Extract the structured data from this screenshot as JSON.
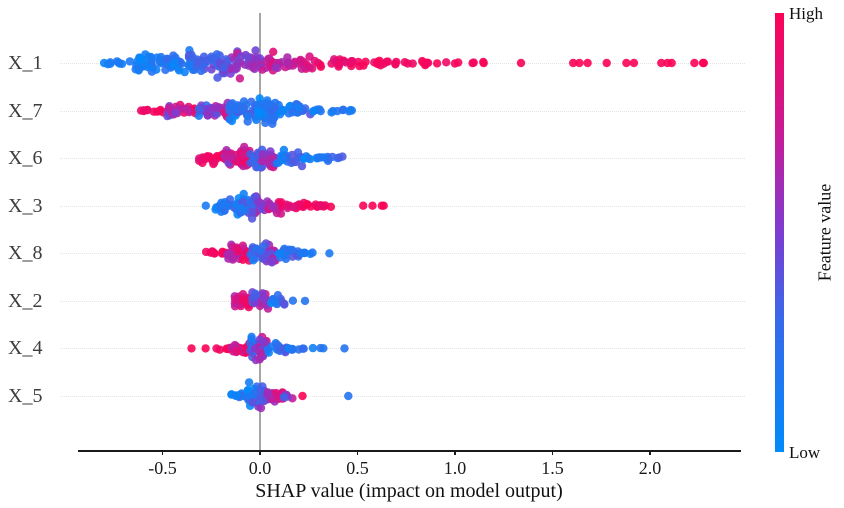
{
  "chart_data": {
    "type": "scatter",
    "variant": "shap-beeswarm-summary",
    "xlabel": "SHAP value (impact on model output)",
    "x_range": [
      -0.93,
      2.46
    ],
    "x_ticks": [
      {
        "value": -0.5,
        "label": "-0.5"
      },
      {
        "value": 0.0,
        "label": "0.0"
      },
      {
        "value": 0.5,
        "label": "0.5"
      },
      {
        "value": 1.0,
        "label": "1.0"
      },
      {
        "value": 1.5,
        "label": "1.5"
      },
      {
        "value": 2.0,
        "label": "2.0"
      }
    ],
    "grid": "dotted-row-guides",
    "zero_reference_line": 0.0,
    "colorbar": {
      "label": "Feature value",
      "high": "High",
      "low": "Low",
      "low_color": "#008bfb",
      "high_color": "#fb0357",
      "gradient_stops": [
        [
          0.0,
          "#008bfb"
        ],
        [
          0.3,
          "#3769eb"
        ],
        [
          0.5,
          "#7d3cd2"
        ],
        [
          0.72,
          "#c61c98"
        ],
        [
          1.0,
          "#fb0357"
        ]
      ]
    },
    "segment_format": [
      "shap_start",
      "shap_end",
      "n_points",
      "y_spread_px",
      "feature_value_start",
      "feature_value_end",
      "feature_value_noise"
    ],
    "features": [
      {
        "name": "X_1",
        "shap_range": [
          -0.81,
          2.3
        ],
        "segments": [
          [
            -0.81,
            -0.64,
            9,
            2.5,
            0.1,
            0.2,
            0.1
          ],
          [
            -0.64,
            -0.45,
            45,
            11.0,
            0.05,
            0.25,
            0.2
          ],
          [
            -0.45,
            -0.28,
            45,
            14.0,
            0.1,
            0.4,
            0.3
          ],
          [
            -0.28,
            -0.1,
            45,
            16.0,
            0.25,
            0.6,
            0.35
          ],
          [
            -0.1,
            0.08,
            35,
            13.0,
            0.45,
            0.75,
            0.3
          ],
          [
            0.08,
            0.32,
            30,
            9.0,
            0.65,
            0.92,
            0.2
          ],
          [
            0.32,
            0.62,
            26,
            4.0,
            0.85,
            1.0,
            0.1
          ],
          [
            0.62,
            0.95,
            16,
            2.5,
            0.92,
            1.0,
            0.06
          ],
          [
            0.95,
            1.18,
            7,
            1.5,
            0.95,
            1.0,
            0.05
          ],
          [
            1.3,
            1.34,
            1,
            0.0,
            1.0,
            1.0,
            0.0
          ],
          [
            1.6,
            1.78,
            4,
            0.0,
            1.0,
            1.0,
            0.0
          ],
          [
            1.85,
            1.92,
            2,
            0.0,
            1.0,
            1.0,
            0.0
          ],
          [
            2.02,
            2.12,
            3,
            0.0,
            1.0,
            1.0,
            0.0
          ],
          [
            2.18,
            2.3,
            3,
            0.0,
            1.0,
            1.0,
            0.0
          ]
        ]
      },
      {
        "name": "X_7",
        "shap_range": [
          -0.62,
          0.58
        ],
        "segments": [
          [
            -0.62,
            -0.48,
            10,
            2.5,
            0.92,
            1.0,
            0.08
          ],
          [
            -0.48,
            -0.32,
            28,
            7.0,
            0.55,
            0.95,
            0.35
          ],
          [
            -0.32,
            -0.16,
            38,
            9.0,
            0.3,
            0.75,
            0.4
          ],
          [
            -0.16,
            -0.02,
            40,
            11.0,
            0.1,
            0.4,
            0.3
          ],
          [
            -0.02,
            0.1,
            45,
            14.0,
            0.05,
            0.25,
            0.2
          ],
          [
            0.1,
            0.26,
            22,
            7.0,
            0.05,
            0.3,
            0.2
          ],
          [
            0.26,
            0.45,
            10,
            2.5,
            0.1,
            0.25,
            0.15
          ],
          [
            0.45,
            0.58,
            3,
            1.0,
            0.15,
            0.2,
            0.1
          ]
        ]
      },
      {
        "name": "X_6",
        "shap_range": [
          -0.32,
          0.43
        ],
        "segments": [
          [
            -0.32,
            -0.18,
            22,
            7.0,
            0.9,
            1.0,
            0.1
          ],
          [
            -0.18,
            -0.05,
            45,
            13.0,
            0.55,
            0.95,
            0.35
          ],
          [
            -0.05,
            0.08,
            40,
            13.0,
            0.3,
            0.7,
            0.35
          ],
          [
            0.08,
            0.22,
            26,
            9.0,
            0.1,
            0.45,
            0.3
          ],
          [
            0.22,
            0.43,
            16,
            4.0,
            0.05,
            0.3,
            0.2
          ]
        ]
      },
      {
        "name": "X_3",
        "shap_range": [
          -0.28,
          0.65
        ],
        "segments": [
          [
            -0.28,
            -0.26,
            1,
            0.0,
            0.15,
            0.15,
            0.0
          ],
          [
            -0.24,
            -0.12,
            22,
            8.0,
            0.05,
            0.3,
            0.2
          ],
          [
            -0.12,
            0.0,
            48,
            14.0,
            0.1,
            0.55,
            0.35
          ],
          [
            0.0,
            0.12,
            28,
            8.0,
            0.5,
            0.9,
            0.3
          ],
          [
            0.12,
            0.26,
            18,
            4.0,
            0.8,
            1.0,
            0.15
          ],
          [
            0.26,
            0.4,
            10,
            2.0,
            0.9,
            1.0,
            0.08
          ],
          [
            0.52,
            0.58,
            2,
            0.0,
            1.0,
            1.0,
            0.0
          ],
          [
            0.62,
            0.65,
            2,
            0.0,
            1.0,
            1.0,
            0.0
          ]
        ]
      },
      {
        "name": "X_8",
        "shap_range": [
          -0.28,
          0.35
        ],
        "segments": [
          [
            -0.28,
            -0.17,
            13,
            2.5,
            0.93,
            1.0,
            0.06
          ],
          [
            -0.17,
            -0.05,
            32,
            10.0,
            0.55,
            0.95,
            0.35
          ],
          [
            -0.05,
            0.08,
            48,
            13.0,
            0.15,
            0.6,
            0.35
          ],
          [
            0.08,
            0.2,
            22,
            7.0,
            0.05,
            0.35,
            0.25
          ],
          [
            0.2,
            0.28,
            6,
            2.0,
            0.1,
            0.25,
            0.15
          ],
          [
            0.34,
            0.36,
            1,
            0.0,
            0.15,
            0.15,
            0.0
          ]
        ]
      },
      {
        "name": "X_2",
        "shap_range": [
          -0.13,
          0.24
        ],
        "segments": [
          [
            -0.13,
            -0.04,
            32,
            10.0,
            0.75,
            1.0,
            0.2
          ],
          [
            -0.04,
            0.05,
            30,
            11.0,
            0.35,
            0.8,
            0.35
          ],
          [
            0.05,
            0.13,
            14,
            6.0,
            0.1,
            0.4,
            0.25
          ],
          [
            0.16,
            0.18,
            1,
            1.0,
            0.2,
            0.2,
            0.0
          ],
          [
            0.23,
            0.25,
            1,
            0.0,
            0.2,
            0.2,
            0.0
          ]
        ]
      },
      {
        "name": "X_4",
        "shap_range": [
          -0.36,
          0.44
        ],
        "segments": [
          [
            -0.36,
            -0.34,
            1,
            0.0,
            1.0,
            1.0,
            0.0
          ],
          [
            -0.29,
            -0.27,
            1,
            0.0,
            1.0,
            1.0,
            0.0
          ],
          [
            -0.24,
            -0.15,
            7,
            1.5,
            0.95,
            1.0,
            0.05
          ],
          [
            -0.15,
            -0.05,
            22,
            6.0,
            0.7,
            1.0,
            0.25
          ],
          [
            -0.05,
            0.04,
            52,
            15.0,
            0.2,
            0.75,
            0.4
          ],
          [
            0.04,
            0.14,
            18,
            6.0,
            0.1,
            0.4,
            0.3
          ],
          [
            0.14,
            0.24,
            7,
            2.0,
            0.1,
            0.25,
            0.15
          ],
          [
            0.27,
            0.33,
            3,
            0.8,
            0.12,
            0.2,
            0.1
          ],
          [
            0.42,
            0.44,
            1,
            0.0,
            0.2,
            0.2,
            0.0
          ]
        ]
      },
      {
        "name": "X_5",
        "shap_range": [
          -0.15,
          0.45
        ],
        "segments": [
          [
            -0.15,
            -0.07,
            12,
            3.0,
            0.08,
            0.3,
            0.2
          ],
          [
            -0.07,
            0.03,
            50,
            15.0,
            0.1,
            0.6,
            0.4
          ],
          [
            0.03,
            0.12,
            22,
            8.0,
            0.5,
            0.95,
            0.35
          ],
          [
            0.12,
            0.18,
            6,
            2.5,
            0.4,
            0.9,
            0.4
          ],
          [
            0.21,
            0.23,
            1,
            0.0,
            1.0,
            1.0,
            0.0
          ],
          [
            0.44,
            0.46,
            1,
            0.0,
            0.2,
            0.2,
            0.0
          ]
        ]
      }
    ]
  }
}
